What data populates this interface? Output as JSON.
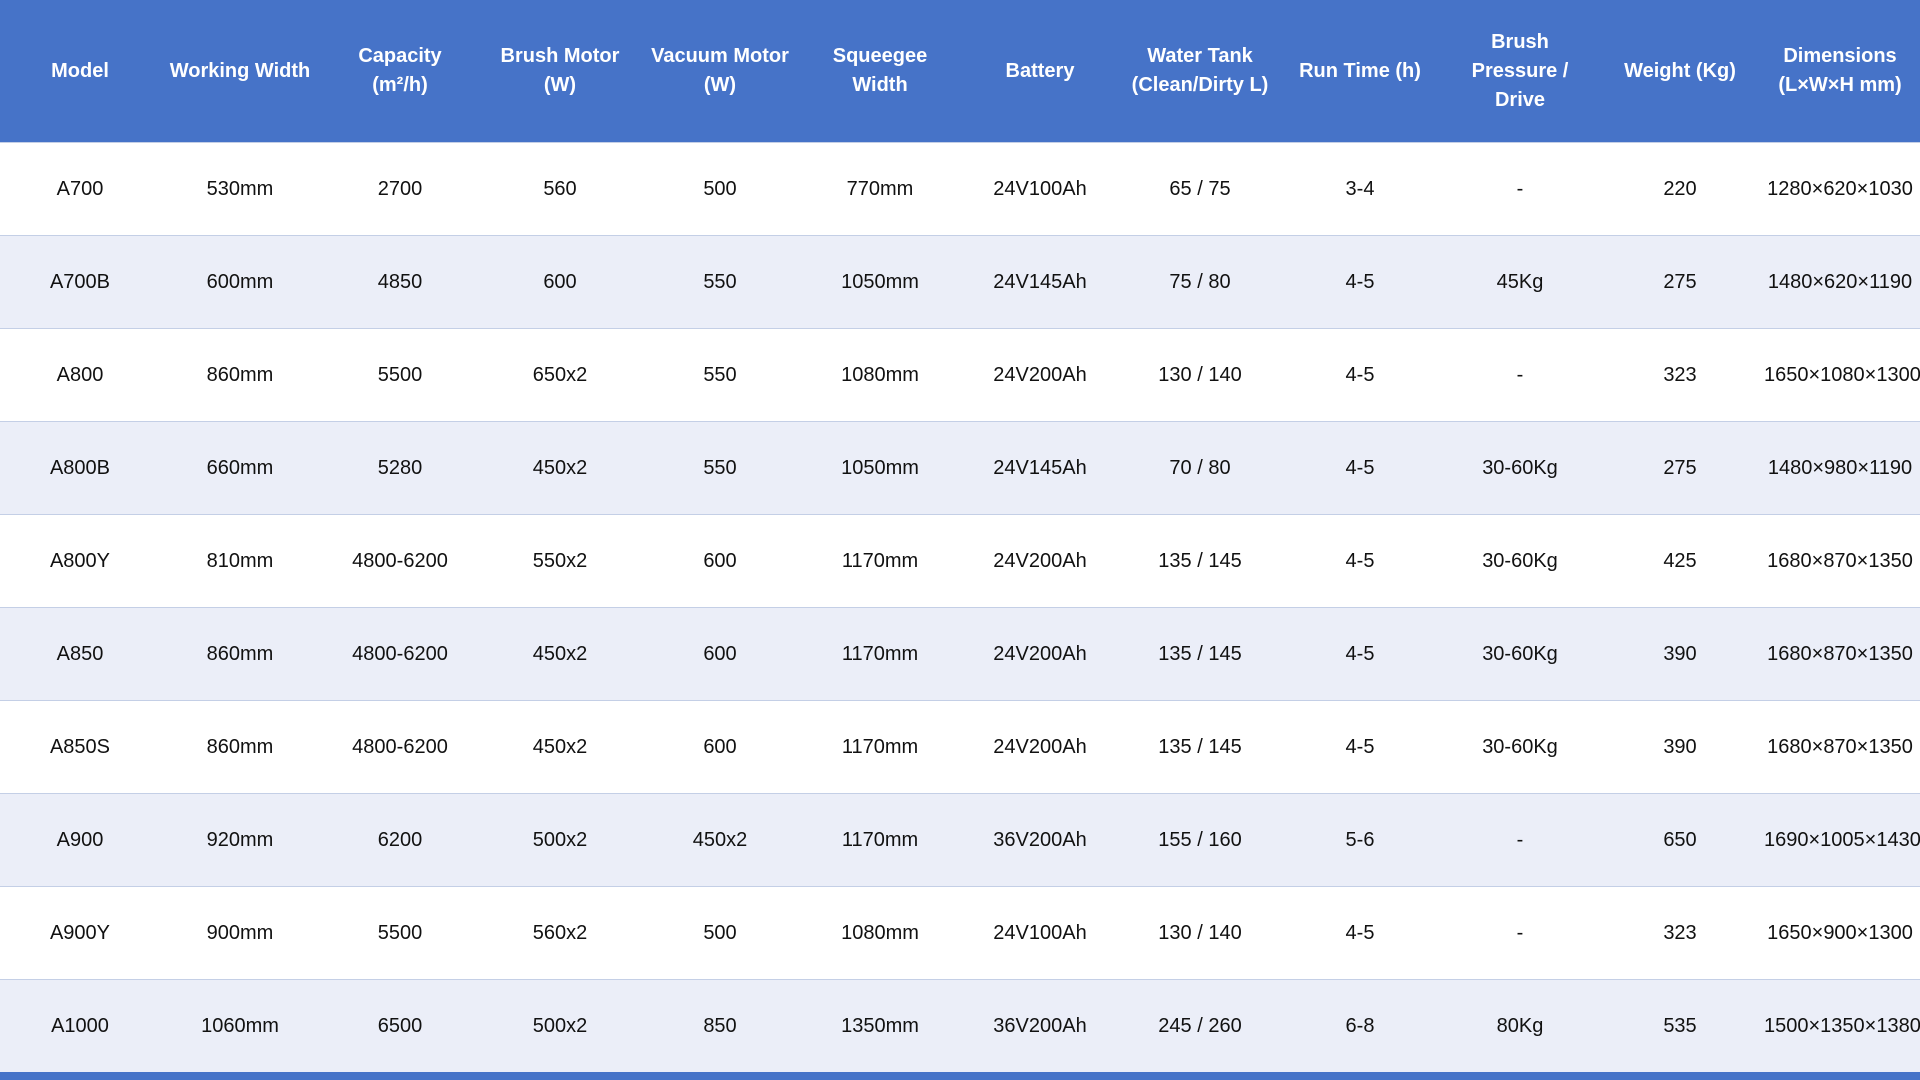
{
  "colors": {
    "header_bg": "#4673C8",
    "header_text": "#FFFFFF",
    "row_bg": "#FFFFFF",
    "row_alt_bg": "#EBEEF8",
    "divider": "#C4CFE6",
    "cell_text": "#111111",
    "bottom_bar": "#4673C8"
  },
  "table": {
    "headers": [
      "Model",
      "Working Width",
      "Capacity (m²/h)",
      "Brush Motor (W)",
      "Vacuum Motor (W)",
      "Squeegee Width",
      "Battery",
      "Water Tank (Clean/Dirty L)",
      "Run Time (h)",
      "Brush Pressure / Drive",
      "Weight (Kg)",
      "Dimensions (L×W×H mm)"
    ],
    "rows": [
      [
        "A700",
        "530mm",
        "2700",
        "560",
        "500",
        "770mm",
        "24V100Ah",
        "65 / 75",
        "3-4",
        "-",
        "220",
        "1280×620×1030"
      ],
      [
        "A700B",
        "600mm",
        "4850",
        "600",
        "550",
        "1050mm",
        "24V145Ah",
        "75 / 80",
        "4-5",
        "45Kg",
        "275",
        "1480×620×1190"
      ],
      [
        "A800",
        "860mm",
        "5500",
        "650x2",
        "550",
        "1080mm",
        "24V200Ah",
        "130 / 140",
        "4-5",
        "-",
        "323",
        "1650×1080×1300"
      ],
      [
        "A800B",
        "660mm",
        "5280",
        "450x2",
        "550",
        "1050mm",
        "24V145Ah",
        "70 / 80",
        "4-5",
        "30-60Kg",
        "275",
        "1480×980×1190"
      ],
      [
        "A800Y",
        "810mm",
        "4800-6200",
        "550x2",
        "600",
        "1170mm",
        "24V200Ah",
        "135 / 145",
        "4-5",
        "30-60Kg",
        "425",
        "1680×870×1350"
      ],
      [
        "A850",
        "860mm",
        "4800-6200",
        "450x2",
        "600",
        "1170mm",
        "24V200Ah",
        "135 / 145",
        "4-5",
        "30-60Kg",
        "390",
        "1680×870×1350"
      ],
      [
        "A850S",
        "860mm",
        "4800-6200",
        "450x2",
        "600",
        "1170mm",
        "24V200Ah",
        "135 / 145",
        "4-5",
        "30-60Kg",
        "390",
        "1680×870×1350"
      ],
      [
        "A900",
        "920mm",
        "6200",
        "500x2",
        "450x2",
        "1170mm",
        "36V200Ah",
        "155 / 160",
        "5-6",
        "-",
        "650",
        "1690×1005×1430"
      ],
      [
        "A900Y",
        "900mm",
        "5500",
        "560x2",
        "500",
        "1080mm",
        "24V100Ah",
        "130 / 140",
        "4-5",
        "-",
        "323",
        "1650×900×1300"
      ],
      [
        "A1000",
        "1060mm",
        "6500",
        "500x2",
        "850",
        "1350mm",
        "36V200Ah",
        "245 / 260",
        "6-8",
        "80Kg",
        "535",
        "1500×1350×1380"
      ]
    ]
  }
}
